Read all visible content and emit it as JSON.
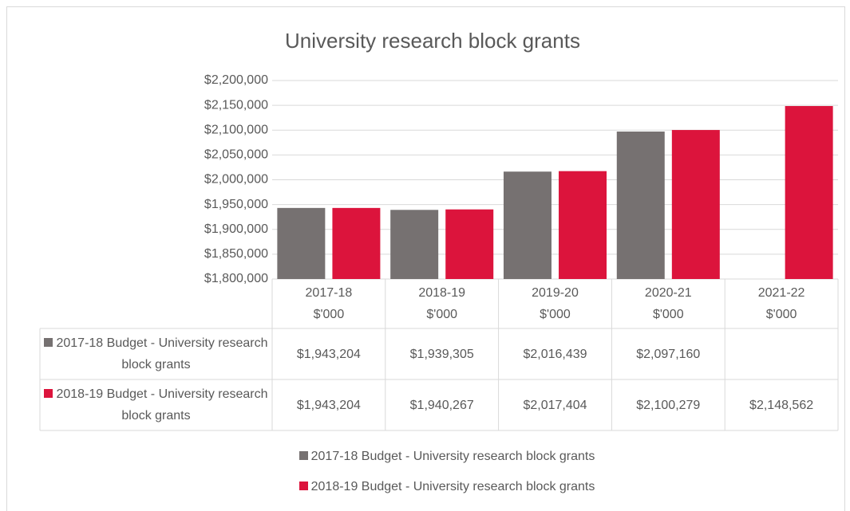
{
  "chart_data": {
    "type": "bar",
    "title": "University research block grants",
    "categories": [
      "2017-18\n$'000",
      "2018-19\n$'000",
      "2019-20\n$'000",
      "2020-21\n$'000",
      "2021-22\n$'000"
    ],
    "series": [
      {
        "name": "2017-18 Budget - University research block grants",
        "color": "#767171",
        "values": [
          1943204,
          1939305,
          2016439,
          2097160,
          null
        ],
        "value_labels": [
          "$1,943,204",
          "$1,939,305",
          "$2,016,439",
          "$2,097,160",
          null
        ]
      },
      {
        "name": "2018-19 Budget - University research block grants",
        "color": "#dc143c",
        "values": [
          1943204,
          1940267,
          2017404,
          2100279,
          2148562
        ],
        "value_labels": [
          "$1,943,204",
          "$1,940,267",
          "$2,017,404",
          "$2,100,279",
          "$2,148,562"
        ]
      }
    ],
    "ylim": [
      1800000,
      2200000
    ],
    "yticks": [
      {
        "value": 1800000,
        "label": "$1,800,000"
      },
      {
        "value": 1850000,
        "label": "$1,850,000"
      },
      {
        "value": 1900000,
        "label": "$1,900,000"
      },
      {
        "value": 1950000,
        "label": "$1,950,000"
      },
      {
        "value": 2000000,
        "label": "$2,000,000"
      },
      {
        "value": 2050000,
        "label": "$2,050,000"
      },
      {
        "value": 2100000,
        "label": "$2,100,000"
      },
      {
        "value": 2150000,
        "label": "$2,150,000"
      },
      {
        "value": 2200000,
        "label": "$2,200,000"
      }
    ],
    "grid": true
  }
}
